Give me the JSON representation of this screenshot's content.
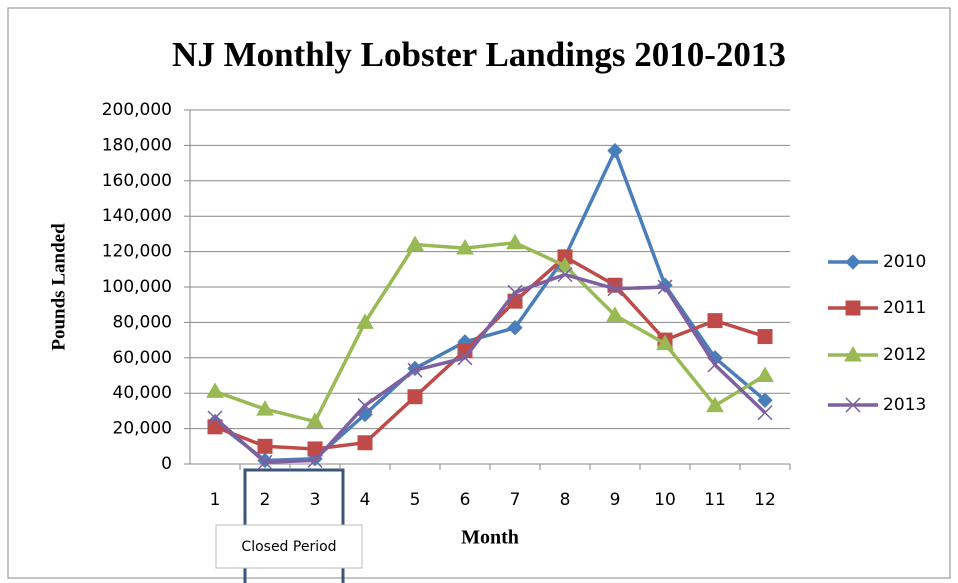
{
  "chart_data": {
    "type": "line",
    "title": "NJ Monthly Lobster Landings 2010-2013",
    "x_label": "Month",
    "y_label": "Pounds Landed",
    "annotation": "Closed Period",
    "categories": [
      "1",
      "2",
      "3",
      "4",
      "5",
      "6",
      "7",
      "8",
      "9",
      "10",
      "11",
      "12"
    ],
    "series": [
      {
        "name": "2010",
        "color": "#4a7ebb",
        "marker": "diamond",
        "values": [
          24000,
          2000,
          3000,
          28000,
          54000,
          69000,
          77000,
          117000,
          177000,
          101000,
          60000,
          36000
        ]
      },
      {
        "name": "2011",
        "color": "#be4b48",
        "marker": "square",
        "values": [
          21000,
          10000,
          8500,
          12000,
          38000,
          64000,
          92000,
          117000,
          101000,
          70000,
          81000,
          72000
        ]
      },
      {
        "name": "2012",
        "color": "#98b954",
        "marker": "triangle",
        "values": [
          41000,
          31000,
          24000,
          80000,
          124000,
          122000,
          125000,
          112000,
          84000,
          68000,
          33000,
          50000
        ]
      },
      {
        "name": "2013",
        "color": "#7d60a0",
        "marker": "x",
        "values": [
          26000,
          1000,
          2000,
          33000,
          53000,
          60000,
          97000,
          107000,
          99000,
          100000,
          56000,
          29000
        ]
      }
    ],
    "ylim": [
      0,
      200000
    ],
    "yticks": [
      0,
      {
        "value": 20000,
        "label": "20,000"
      },
      {
        "value": 40000,
        "label": "40,000"
      },
      {
        "value": 60000,
        "label": "60,000"
      },
      {
        "value": 80000,
        "label": "80,000"
      },
      {
        "value": 100000,
        "label": "100,000"
      },
      {
        "value": 120000,
        "label": "120,000"
      },
      {
        "value": 140000,
        "label": "140,000"
      },
      {
        "value": 160000,
        "label": "160,000"
      },
      {
        "value": 180000,
        "label": "180,000"
      },
      {
        "value": 200000,
        "label": "200,000"
      }
    ],
    "grid": true,
    "legend": "right"
  }
}
